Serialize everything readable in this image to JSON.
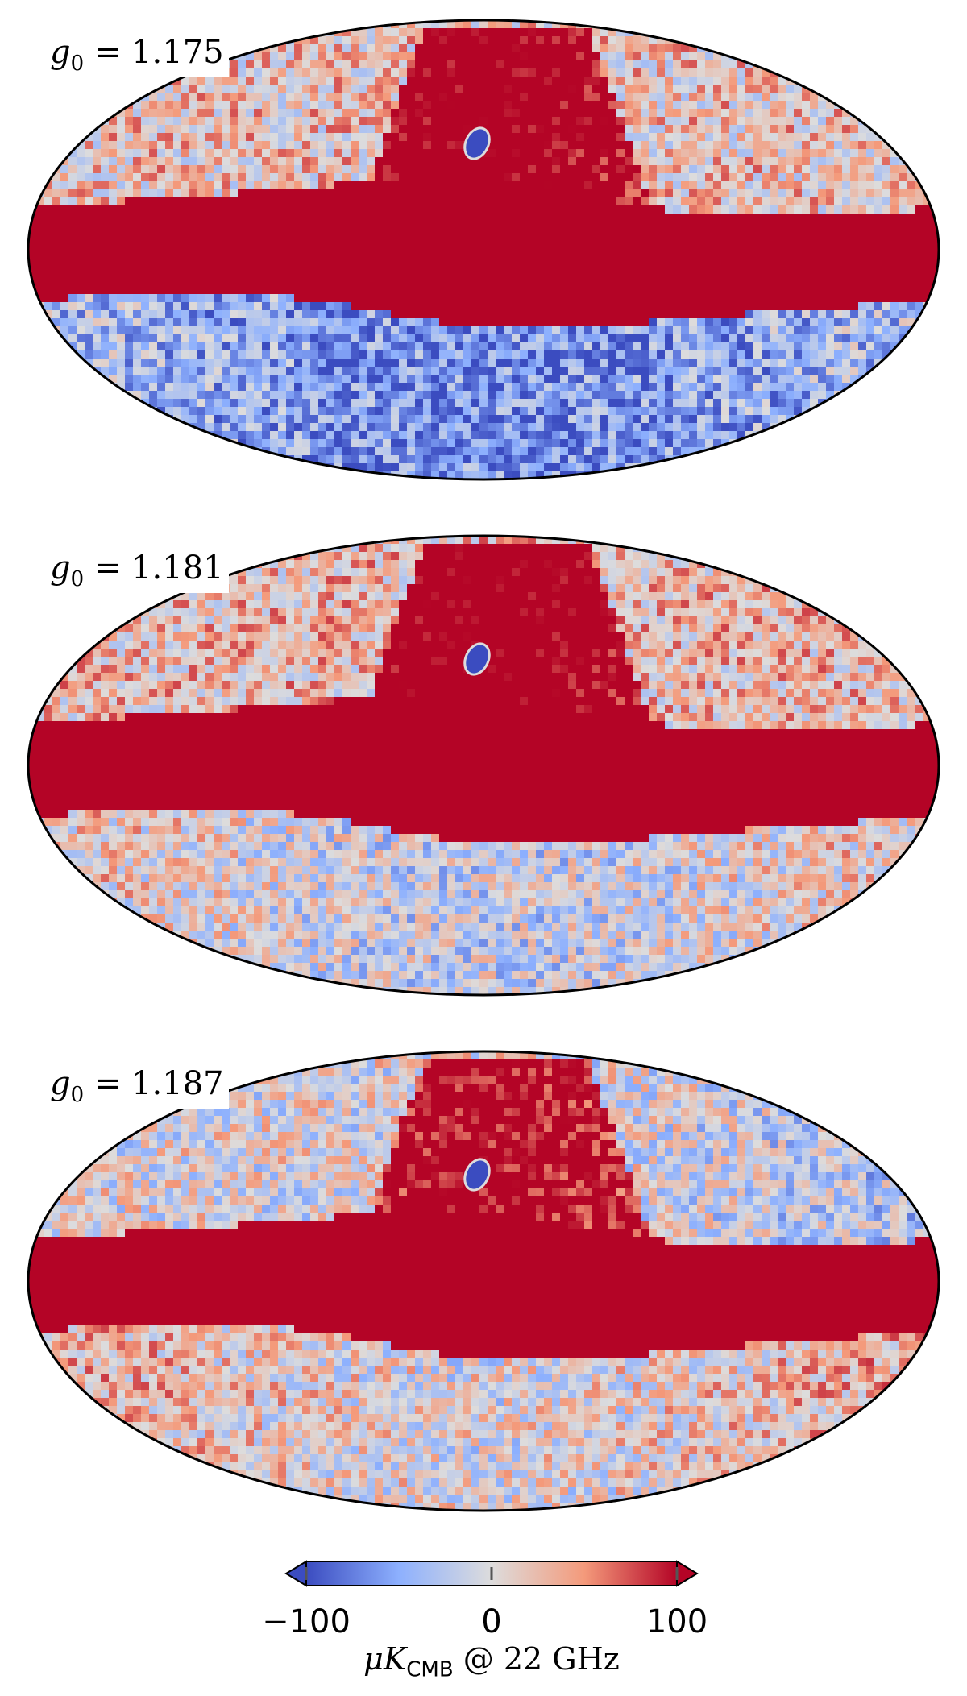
{
  "chart_data": {
    "type": "heatmap",
    "projection": "mollweide",
    "panels": [
      {
        "label_symbol": "g",
        "label_sub": "0",
        "label_value": "= 1.175"
      },
      {
        "label_symbol": "g",
        "label_sub": "0",
        "label_value": "= 1.181"
      },
      {
        "label_symbol": "g",
        "label_sub": "0",
        "label_value": "= 1.187"
      }
    ],
    "colorbar": {
      "min": -100,
      "max": 100,
      "ticks": [
        "−100",
        "0",
        "100"
      ],
      "label": "μK",
      "label_sub": "CMB",
      "label_suffix": " @ 22 GHz",
      "colormap": "coolwarm",
      "colors": [
        "#3b4cc0",
        "#8db0fe",
        "#dddcdc",
        "#f49a7b",
        "#b40426"
      ],
      "extend": "both"
    }
  }
}
